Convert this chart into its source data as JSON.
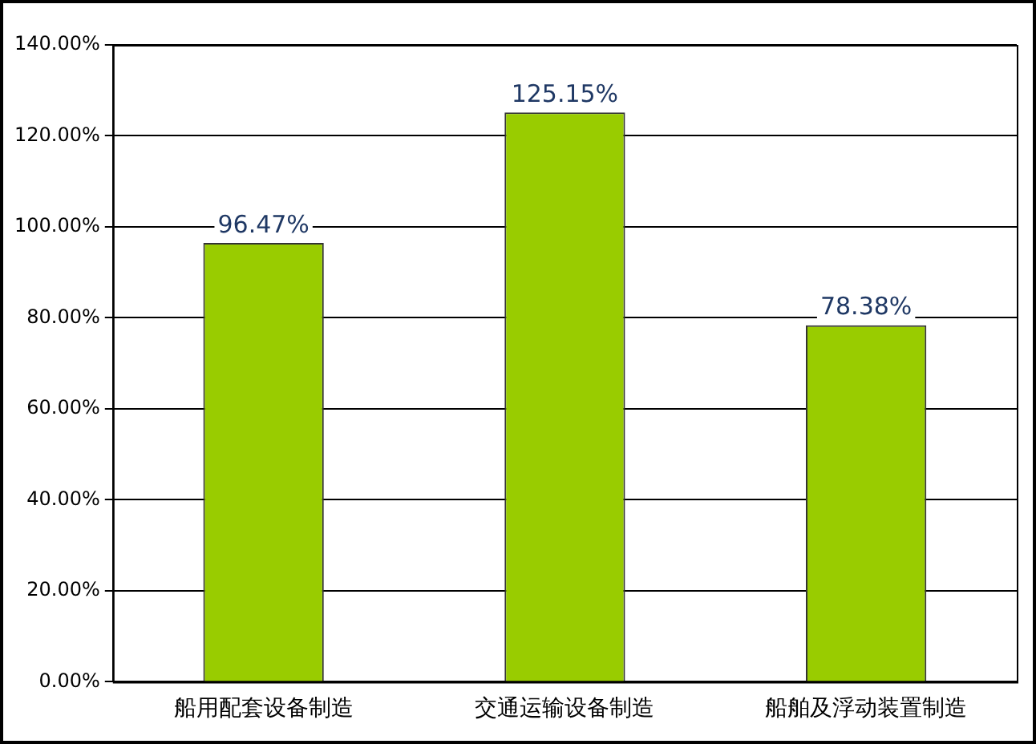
{
  "chart_data": {
    "type": "bar",
    "categories": [
      "船用配套设备制造",
      "交通运输设备制造",
      "船舶及浮动装置制造"
    ],
    "values": [
      96.47,
      125.15,
      78.38
    ],
    "color": "#99cc00",
    "value_labels": [
      "96.47%",
      "125.15%",
      "78.38%"
    ],
    "ylim": [
      0,
      140
    ],
    "yticks": [
      {
        "value": 0,
        "label": "0.00%"
      },
      {
        "value": 20,
        "label": "20.00%"
      },
      {
        "value": 40,
        "label": "40.00%"
      },
      {
        "value": 60,
        "label": "60.00%"
      },
      {
        "value": 80,
        "label": "80.00%"
      },
      {
        "value": 100,
        "label": "100.00%"
      },
      {
        "value": 120,
        "label": "120.00%"
      },
      {
        "value": 140,
        "label": "140.00%"
      }
    ],
    "grid": "y",
    "legend": false
  }
}
